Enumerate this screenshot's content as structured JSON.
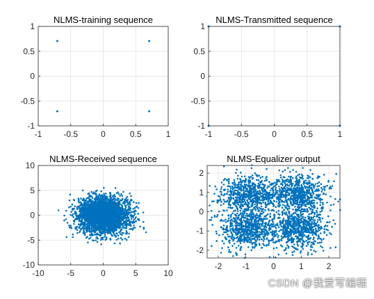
{
  "figure": {
    "background": "#ffffff",
    "marker_color": "#0072bd"
  },
  "watermark": {
    "text": "CSDN @我爱写编程",
    "text_behind": "知乎"
  },
  "chart_data": [
    {
      "type": "scatter",
      "title": "NLMS-training sequence",
      "xlim": [
        -1,
        1
      ],
      "ylim": [
        -1,
        1
      ],
      "xticks": [
        -1,
        -0.5,
        0,
        0.5,
        1
      ],
      "yticks": [
        -1,
        -0.5,
        0,
        0.5,
        1
      ],
      "xticklabels": [
        "-1",
        "-0.5",
        "0",
        "0.5",
        "1"
      ],
      "yticklabels": [
        "-1",
        "-0.5",
        "0",
        "0.5",
        "1"
      ],
      "grid": true,
      "points": [
        [
          -0.707,
          0.707
        ],
        [
          0.707,
          0.707
        ],
        [
          -0.707,
          -0.707
        ],
        [
          0.707,
          -0.707
        ]
      ]
    },
    {
      "type": "scatter",
      "title": "NLMS-Transmitted sequence",
      "xlim": [
        -1,
        1
      ],
      "ylim": [
        -1,
        1
      ],
      "xticks": [
        -1,
        -0.5,
        0,
        0.5,
        1
      ],
      "yticks": [
        -1,
        -0.5,
        0,
        0.5,
        1
      ],
      "xticklabels": [
        "-1",
        "-0.5",
        "0",
        "0.5",
        "1"
      ],
      "yticklabels": [
        "-1",
        "-0.5",
        "0",
        "0.5",
        "1"
      ],
      "grid": true,
      "points": [
        [
          -1,
          1
        ],
        [
          1,
          1
        ],
        [
          -1,
          -1
        ],
        [
          1,
          -1
        ]
      ]
    },
    {
      "type": "scatter",
      "title": "NLMS-Received sequence",
      "xlim": [
        -10,
        10
      ],
      "ylim": [
        -10,
        10
      ],
      "xticks": [
        -10,
        -5,
        0,
        5,
        10
      ],
      "yticks": [
        -10,
        -5,
        0,
        5,
        10
      ],
      "xticklabels": [
        "-10",
        "-5",
        "0",
        "5",
        "10"
      ],
      "yticklabels": [
        "-10",
        "-5",
        "0",
        "5",
        "10"
      ],
      "grid": true,
      "cloud": {
        "distribution": "gaussian",
        "center": [
          0,
          0
        ],
        "std": [
          2.0,
          1.8
        ],
        "count": 3000,
        "seed": 7
      }
    },
    {
      "type": "scatter",
      "title": "NLMS-Equalizer output",
      "xlim": [
        -2.4,
        2.4
      ],
      "ylim": [
        -2.4,
        2.4
      ],
      "xticks": [
        -2,
        -1,
        0,
        1,
        2
      ],
      "yticks": [
        -2,
        -1,
        0,
        1,
        2
      ],
      "xticklabels": [
        "-2",
        "-1",
        "0",
        "1",
        "2"
      ],
      "yticklabels": [
        "-2",
        "-1",
        "0",
        "1",
        "2"
      ],
      "grid": true,
      "cloud": {
        "distribution": "gaussian-mixture",
        "centers": [
          [
            -0.9,
            0.9
          ],
          [
            0.9,
            0.9
          ],
          [
            -0.9,
            -0.9
          ],
          [
            0.9,
            -0.9
          ]
        ],
        "std": 0.5,
        "count_per_cluster": 700,
        "seed": 11
      }
    }
  ]
}
